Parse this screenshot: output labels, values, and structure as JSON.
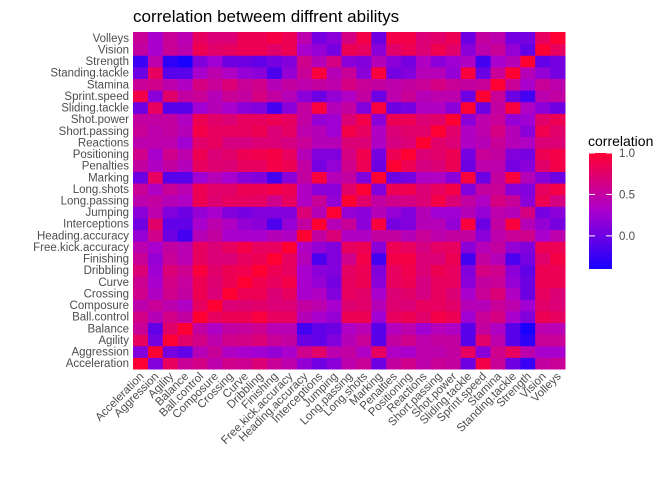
{
  "chart_data": {
    "type": "heatmap",
    "title": "correlation betweem diffrent abilitys",
    "xlabel": "",
    "ylabel": "",
    "variables": [
      "Acceleration",
      "Aggression",
      "Agility",
      "Balance",
      "Ball.control",
      "Composure",
      "Crossing",
      "Curve",
      "Dribbling",
      "Finishing",
      "Free.kick.accuracy",
      "Heading.accuracy",
      "Interceptions",
      "Jumping",
      "Long.passing",
      "Long.shots",
      "Marking",
      "Penalties",
      "Positioning",
      "Reactions",
      "Short.passing",
      "Shot.power",
      "Sliding.tackle",
      "Sprint.speed",
      "Stamina",
      "Standing.tackle",
      "Strength",
      "Vision",
      "Volleys"
    ],
    "matrix": [
      [
        1.0,
        0.1,
        0.8,
        0.55,
        0.62,
        0.45,
        0.6,
        0.58,
        0.7,
        0.55,
        0.45,
        0.2,
        0.02,
        0.15,
        0.45,
        0.55,
        0.0,
        0.5,
        0.6,
        0.45,
        0.55,
        0.5,
        0.0,
        0.9,
        0.55,
        0.0,
        -0.25,
        0.5,
        0.55
      ],
      [
        0.1,
        1.0,
        0.05,
        -0.05,
        0.4,
        0.55,
        0.35,
        0.3,
        0.25,
        0.2,
        0.3,
        0.6,
        0.75,
        0.45,
        0.5,
        0.35,
        0.8,
        0.35,
        0.3,
        0.45,
        0.45,
        0.5,
        0.8,
        0.15,
        0.6,
        0.8,
        0.45,
        0.3,
        0.3
      ],
      [
        0.8,
        0.05,
        1.0,
        0.75,
        0.62,
        0.45,
        0.6,
        0.62,
        0.7,
        0.55,
        0.5,
        0.0,
        -0.05,
        0.1,
        0.4,
        0.55,
        -0.1,
        0.5,
        0.6,
        0.45,
        0.5,
        0.5,
        -0.1,
        0.75,
        0.45,
        -0.1,
        -0.3,
        0.55,
        0.55
      ],
      [
        0.55,
        -0.05,
        0.75,
        1.0,
        0.5,
        0.35,
        0.5,
        0.52,
        0.58,
        0.42,
        0.42,
        -0.2,
        -0.05,
        0.0,
        0.35,
        0.42,
        -0.1,
        0.38,
        0.45,
        0.25,
        0.4,
        0.35,
        -0.1,
        0.5,
        0.35,
        -0.1,
        -0.6,
        0.45,
        0.42
      ],
      [
        0.62,
        0.4,
        0.62,
        0.5,
        1.0,
        0.8,
        0.85,
        0.85,
        0.95,
        0.8,
        0.8,
        0.4,
        0.3,
        0.2,
        0.85,
        0.85,
        0.25,
        0.8,
        0.85,
        0.75,
        0.9,
        0.85,
        0.25,
        0.55,
        0.65,
        0.3,
        0.1,
        0.85,
        0.8
      ],
      [
        0.45,
        0.55,
        0.45,
        0.35,
        0.8,
        1.0,
        0.7,
        0.72,
        0.75,
        0.7,
        0.7,
        0.5,
        0.45,
        0.3,
        0.72,
        0.75,
        0.4,
        0.72,
        0.7,
        0.8,
        0.8,
        0.75,
        0.4,
        0.4,
        0.55,
        0.45,
        0.25,
        0.75,
        0.7
      ],
      [
        0.6,
        0.35,
        0.6,
        0.5,
        0.85,
        0.7,
        1.0,
        0.85,
        0.85,
        0.7,
        0.8,
        0.3,
        0.35,
        0.1,
        0.8,
        0.75,
        0.3,
        0.7,
        0.75,
        0.65,
        0.8,
        0.7,
        0.3,
        0.55,
        0.7,
        0.35,
        0.0,
        0.8,
        0.7
      ],
      [
        0.58,
        0.3,
        0.62,
        0.52,
        0.85,
        0.72,
        0.85,
        1.0,
        0.88,
        0.8,
        0.9,
        0.3,
        0.2,
        0.05,
        0.8,
        0.85,
        0.15,
        0.8,
        0.85,
        0.65,
        0.8,
        0.8,
        0.15,
        0.5,
        0.55,
        0.2,
        0.0,
        0.85,
        0.85
      ],
      [
        0.7,
        0.25,
        0.7,
        0.58,
        0.95,
        0.75,
        0.85,
        0.88,
        1.0,
        0.85,
        0.8,
        0.3,
        0.15,
        0.1,
        0.78,
        0.85,
        0.1,
        0.8,
        0.88,
        0.7,
        0.85,
        0.8,
        0.1,
        0.65,
        0.6,
        0.15,
        -0.05,
        0.85,
        0.85
      ],
      [
        0.55,
        0.2,
        0.55,
        0.42,
        0.8,
        0.7,
        0.7,
        0.8,
        0.85,
        1.0,
        0.8,
        0.4,
        -0.15,
        0.1,
        0.6,
        0.9,
        -0.2,
        0.9,
        0.92,
        0.7,
        0.7,
        0.85,
        -0.2,
        0.5,
        0.4,
        -0.15,
        0.05,
        0.75,
        0.92
      ],
      [
        0.45,
        0.3,
        0.5,
        0.42,
        0.8,
        0.7,
        0.8,
        0.9,
        0.8,
        0.8,
        1.0,
        0.35,
        0.2,
        0.1,
        0.8,
        0.85,
        0.15,
        0.85,
        0.8,
        0.65,
        0.78,
        0.8,
        0.15,
        0.4,
        0.5,
        0.2,
        0.1,
        0.85,
        0.85
      ],
      [
        0.2,
        0.6,
        0.0,
        -0.2,
        0.4,
        0.5,
        0.3,
        0.3,
        0.3,
        0.4,
        0.35,
        1.0,
        0.5,
        0.7,
        0.35,
        0.35,
        0.5,
        0.5,
        0.4,
        0.55,
        0.45,
        0.5,
        0.5,
        0.15,
        0.45,
        0.55,
        0.6,
        0.3,
        0.45
      ],
      [
        0.02,
        0.75,
        -0.05,
        -0.05,
        0.3,
        0.45,
        0.35,
        0.2,
        0.15,
        -0.15,
        0.2,
        0.5,
        1.0,
        0.4,
        0.55,
        0.15,
        0.95,
        0.05,
        0.1,
        0.4,
        0.4,
        0.2,
        0.95,
        0.0,
        0.5,
        0.95,
        0.4,
        0.2,
        0.05
      ],
      [
        0.15,
        0.45,
        0.1,
        0.0,
        0.2,
        0.3,
        0.1,
        0.05,
        0.1,
        0.1,
        0.1,
        0.7,
        0.4,
        1.0,
        0.2,
        0.15,
        0.4,
        0.2,
        0.1,
        0.4,
        0.25,
        0.25,
        0.4,
        0.2,
        0.45,
        0.4,
        0.65,
        0.05,
        0.15
      ],
      [
        0.45,
        0.5,
        0.4,
        0.35,
        0.85,
        0.72,
        0.8,
        0.8,
        0.78,
        0.6,
        0.8,
        0.35,
        0.55,
        0.2,
        1.0,
        0.75,
        0.5,
        0.6,
        0.65,
        0.7,
        0.9,
        0.7,
        0.5,
        0.35,
        0.65,
        0.55,
        0.15,
        0.85,
        0.65
      ],
      [
        0.55,
        0.35,
        0.55,
        0.42,
        0.85,
        0.75,
        0.75,
        0.85,
        0.85,
        0.9,
        0.85,
        0.35,
        0.15,
        0.15,
        0.75,
        1.0,
        0.1,
        0.85,
        0.88,
        0.7,
        0.8,
        0.9,
        0.1,
        0.5,
        0.55,
        0.15,
        0.1,
        0.8,
        0.9
      ],
      [
        0.0,
        0.8,
        -0.1,
        -0.1,
        0.25,
        0.4,
        0.3,
        0.15,
        0.1,
        -0.2,
        0.15,
        0.5,
        0.95,
        0.4,
        0.5,
        0.1,
        1.0,
        0.0,
        0.05,
        0.35,
        0.35,
        0.15,
        0.95,
        0.0,
        0.5,
        0.95,
        0.4,
        0.15,
        0.0
      ],
      [
        0.5,
        0.35,
        0.5,
        0.38,
        0.8,
        0.72,
        0.7,
        0.8,
        0.8,
        0.9,
        0.85,
        0.5,
        0.05,
        0.2,
        0.6,
        0.85,
        0.0,
        1.0,
        0.85,
        0.65,
        0.7,
        0.85,
        0.0,
        0.45,
        0.45,
        0.05,
        0.15,
        0.75,
        0.9
      ],
      [
        0.6,
        0.3,
        0.6,
        0.45,
        0.85,
        0.7,
        0.75,
        0.85,
        0.88,
        0.92,
        0.8,
        0.4,
        0.1,
        0.1,
        0.65,
        0.88,
        0.05,
        0.85,
        1.0,
        0.7,
        0.75,
        0.85,
        0.05,
        0.55,
        0.5,
        0.1,
        0.05,
        0.85,
        0.9
      ],
      [
        0.45,
        0.45,
        0.45,
        0.25,
        0.75,
        0.8,
        0.65,
        0.65,
        0.7,
        0.7,
        0.65,
        0.55,
        0.4,
        0.4,
        0.7,
        0.7,
        0.35,
        0.65,
        0.7,
        1.0,
        0.75,
        0.7,
        0.35,
        0.4,
        0.55,
        0.4,
        0.35,
        0.7,
        0.7
      ],
      [
        0.55,
        0.45,
        0.5,
        0.4,
        0.9,
        0.8,
        0.8,
        0.8,
        0.85,
        0.7,
        0.78,
        0.45,
        0.4,
        0.25,
        0.9,
        0.8,
        0.35,
        0.7,
        0.75,
        0.75,
        1.0,
        0.75,
        0.35,
        0.45,
        0.65,
        0.4,
        0.15,
        0.88,
        0.75
      ],
      [
        0.5,
        0.5,
        0.5,
        0.35,
        0.85,
        0.75,
        0.7,
        0.8,
        0.8,
        0.85,
        0.8,
        0.5,
        0.2,
        0.25,
        0.7,
        0.9,
        0.15,
        0.85,
        0.85,
        0.7,
        0.75,
        1.0,
        0.15,
        0.45,
        0.55,
        0.2,
        0.25,
        0.75,
        0.85
      ],
      [
        0.0,
        0.8,
        -0.1,
        -0.1,
        0.25,
        0.4,
        0.3,
        0.15,
        0.1,
        -0.2,
        0.15,
        0.5,
        0.95,
        0.4,
        0.5,
        0.1,
        0.95,
        0.0,
        0.05,
        0.35,
        0.35,
        0.15,
        1.0,
        0.0,
        0.5,
        0.95,
        0.35,
        0.15,
        0.0
      ],
      [
        0.9,
        0.15,
        0.75,
        0.5,
        0.55,
        0.4,
        0.55,
        0.5,
        0.65,
        0.5,
        0.4,
        0.15,
        0.0,
        0.2,
        0.35,
        0.5,
        0.0,
        0.45,
        0.55,
        0.4,
        0.45,
        0.45,
        0.0,
        1.0,
        0.55,
        0.0,
        -0.2,
        0.45,
        0.5
      ],
      [
        0.55,
        0.6,
        0.45,
        0.35,
        0.65,
        0.55,
        0.7,
        0.55,
        0.6,
        0.4,
        0.5,
        0.45,
        0.5,
        0.45,
        0.65,
        0.55,
        0.5,
        0.45,
        0.5,
        0.55,
        0.65,
        0.55,
        0.5,
        0.55,
        1.0,
        0.55,
        0.3,
        0.55,
        0.45
      ],
      [
        0.0,
        0.8,
        -0.1,
        -0.1,
        0.3,
        0.45,
        0.35,
        0.2,
        0.15,
        -0.15,
        0.2,
        0.55,
        0.95,
        0.4,
        0.55,
        0.15,
        0.95,
        0.05,
        0.1,
        0.4,
        0.4,
        0.2,
        0.95,
        0.0,
        0.55,
        1.0,
        0.4,
        0.2,
        0.05
      ],
      [
        -0.25,
        0.45,
        -0.3,
        -0.6,
        0.1,
        0.25,
        0.0,
        0.0,
        -0.05,
        0.05,
        0.1,
        0.6,
        0.4,
        0.65,
        0.15,
        0.1,
        0.4,
        0.15,
        0.05,
        0.35,
        0.15,
        0.25,
        0.35,
        -0.2,
        0.3,
        0.4,
        1.0,
        -0.05,
        0.05
      ],
      [
        0.5,
        0.3,
        0.55,
        0.45,
        0.85,
        0.75,
        0.8,
        0.85,
        0.85,
        0.75,
        0.85,
        0.3,
        0.2,
        0.05,
        0.85,
        0.8,
        0.15,
        0.75,
        0.85,
        0.7,
        0.88,
        0.75,
        0.15,
        0.45,
        0.55,
        0.2,
        -0.05,
        1.0,
        0.8
      ],
      [
        0.55,
        0.3,
        0.55,
        0.42,
        0.8,
        0.7,
        0.7,
        0.85,
        0.85,
        0.92,
        0.85,
        0.45,
        0.05,
        0.15,
        0.65,
        0.9,
        0.0,
        0.9,
        0.9,
        0.7,
        0.75,
        0.85,
        0.0,
        0.5,
        0.45,
        0.05,
        0.05,
        0.8,
        1.0
      ]
    ],
    "color_scale": {
      "low_color": "#1a00ff",
      "mid_color": "#aa00ce",
      "high_color": "#ff0033",
      "min": -0.4,
      "max": 1.0
    },
    "legend": {
      "title": "correlation",
      "ticks": [
        "1.0",
        "0.5",
        "0.0"
      ],
      "tick_values": [
        1.0,
        0.5,
        0.0
      ],
      "position": "right"
    }
  }
}
